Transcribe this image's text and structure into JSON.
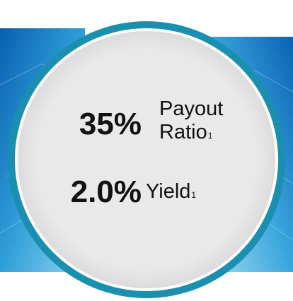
{
  "metrics": [
    {
      "value": "35%",
      "label_lines": [
        "Payout",
        "Ratio"
      ],
      "footnote": "1"
    },
    {
      "value": "2.0%",
      "label_lines": [
        "Yield"
      ],
      "footnote": "1"
    }
  ]
}
